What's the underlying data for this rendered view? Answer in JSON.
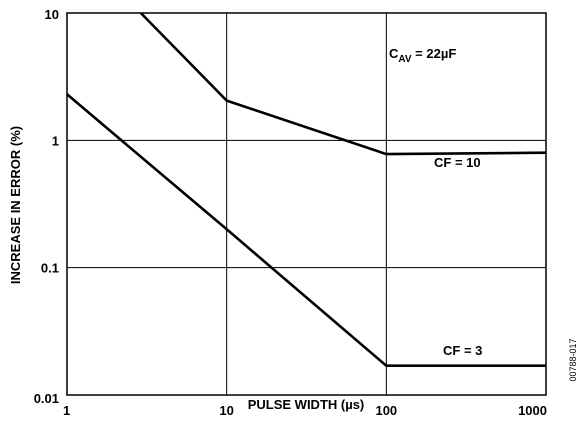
{
  "chart_data": {
    "type": "line",
    "xlabel": "PULSE WIDTH (µs)",
    "ylabel": "INCREASE IN ERROR (%)",
    "x_scale": "log",
    "y_scale": "log",
    "xlim": [
      1,
      1000
    ],
    "ylim": [
      0.01,
      10
    ],
    "x_ticks": [
      "1",
      "10",
      "100",
      "1000"
    ],
    "y_ticks": [
      "0.01",
      "0.1",
      "1",
      "10"
    ],
    "grid": true,
    "series": [
      {
        "name": "CF = 10",
        "x": [
          2.9,
          10,
          100,
          1000
        ],
        "y": [
          10,
          2.05,
          0.78,
          0.8
        ]
      },
      {
        "name": "CF = 3",
        "x": [
          1,
          10,
          100,
          1000
        ],
        "y": [
          2.3,
          0.2,
          0.017,
          0.017
        ]
      }
    ],
    "annotations": [
      {
        "text_main": "C",
        "text_sub": "AV",
        "text_rest": " = 22µF",
        "x": 200,
        "y": 5
      },
      {
        "text": "CF = 10",
        "x": 300,
        "y": 0.55
      },
      {
        "text": "CF = 3",
        "x": 300,
        "y": 0.024
      }
    ],
    "figure_id": "00788-017"
  }
}
